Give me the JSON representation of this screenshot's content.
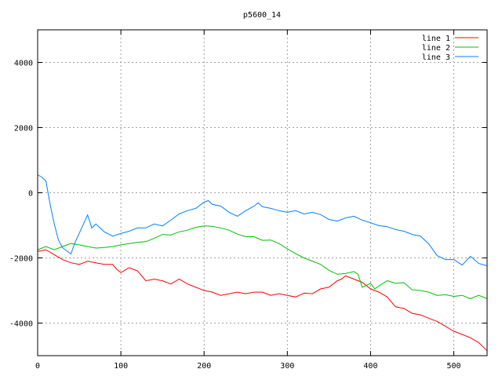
{
  "chart_data": {
    "type": "line",
    "title": "p5600_14",
    "xlabel": "",
    "ylabel": "",
    "xlim": [
      0,
      540
    ],
    "ylim": [
      -5000,
      5000
    ],
    "xticks": [
      0,
      100,
      200,
      300,
      400,
      500
    ],
    "yticks": [
      -4000,
      -2000,
      0,
      2000,
      4000
    ],
    "grid": true,
    "legend_position": "top-right",
    "series": [
      {
        "name": "line 1",
        "color": "#ff0000",
        "x": [
          0,
          10,
          20,
          30,
          40,
          50,
          60,
          70,
          80,
          90,
          95,
          100,
          110,
          120,
          130,
          140,
          150,
          160,
          170,
          180,
          190,
          200,
          210,
          220,
          230,
          240,
          250,
          260,
          270,
          280,
          290,
          300,
          310,
          320,
          330,
          340,
          350,
          360,
          365,
          370,
          380,
          390,
          400,
          410,
          420,
          430,
          440,
          450,
          460,
          470,
          480,
          490,
          500,
          510,
          520,
          530,
          540
        ],
        "y": [
          -1800,
          -1750,
          -1900,
          -2050,
          -2150,
          -2200,
          -2100,
          -2150,
          -2200,
          -2200,
          -2350,
          -2450,
          -2300,
          -2400,
          -2700,
          -2650,
          -2700,
          -2800,
          -2650,
          -2800,
          -2900,
          -3000,
          -3050,
          -3150,
          -3100,
          -3050,
          -3100,
          -3050,
          -3050,
          -3150,
          -3100,
          -3150,
          -3200,
          -3080,
          -3100,
          -2950,
          -2900,
          -2700,
          -2650,
          -2550,
          -2650,
          -2750,
          -2950,
          -3050,
          -3200,
          -3500,
          -3550,
          -3700,
          -3750,
          -3850,
          -3950,
          -4100,
          -4250,
          -4350,
          -4450,
          -4600,
          -4850
        ]
      },
      {
        "name": "line 2",
        "color": "#00c000",
        "x": [
          0,
          10,
          20,
          30,
          40,
          50,
          60,
          70,
          80,
          90,
          100,
          110,
          120,
          130,
          140,
          150,
          160,
          170,
          180,
          190,
          200,
          210,
          220,
          230,
          240,
          250,
          260,
          270,
          280,
          290,
          300,
          310,
          320,
          330,
          340,
          350,
          360,
          370,
          380,
          385,
          390,
          400,
          405,
          410,
          420,
          430,
          440,
          450,
          460,
          470,
          480,
          490,
          500,
          510,
          520,
          530,
          540
        ],
        "y": [
          -1750,
          -1650,
          -1750,
          -1650,
          -1560,
          -1600,
          -1650,
          -1700,
          -1680,
          -1650,
          -1600,
          -1560,
          -1520,
          -1500,
          -1400,
          -1280,
          -1300,
          -1200,
          -1150,
          -1060,
          -1020,
          -1030,
          -1080,
          -1150,
          -1270,
          -1350,
          -1350,
          -1460,
          -1450,
          -1560,
          -1720,
          -1870,
          -2000,
          -2100,
          -2200,
          -2380,
          -2500,
          -2480,
          -2420,
          -2500,
          -2900,
          -2780,
          -2950,
          -2860,
          -2700,
          -2780,
          -2760,
          -2980,
          -3000,
          -3050,
          -3150,
          -3130,
          -3180,
          -3150,
          -3250,
          -3150,
          -3250
        ]
      },
      {
        "name": "line 3",
        "color": "#0080ff",
        "x": [
          0,
          5,
          10,
          15,
          20,
          25,
          30,
          40,
          45,
          55,
          60,
          65,
          70,
          80,
          90,
          100,
          110,
          120,
          130,
          140,
          150,
          160,
          170,
          180,
          190,
          200,
          205,
          210,
          220,
          230,
          240,
          250,
          260,
          265,
          270,
          280,
          290,
          300,
          310,
          320,
          330,
          340,
          350,
          360,
          370,
          380,
          390,
          400,
          410,
          420,
          430,
          440,
          450,
          460,
          470,
          480,
          490,
          500,
          510,
          520,
          530,
          540
        ],
        "y": [
          550,
          480,
          360,
          -360,
          -960,
          -1450,
          -1690,
          -1880,
          -1520,
          -960,
          -680,
          -1080,
          -960,
          -1200,
          -1330,
          -1250,
          -1180,
          -1080,
          -1080,
          -960,
          -1020,
          -840,
          -650,
          -550,
          -480,
          -290,
          -240,
          -360,
          -410,
          -600,
          -720,
          -550,
          -410,
          -310,
          -430,
          -480,
          -550,
          -600,
          -550,
          -650,
          -600,
          -670,
          -820,
          -870,
          -770,
          -720,
          -840,
          -920,
          -1010,
          -1040,
          -1130,
          -1180,
          -1280,
          -1330,
          -1570,
          -1930,
          -2050,
          -2050,
          -2220,
          -1950,
          -2170,
          -2240
        ]
      }
    ]
  }
}
